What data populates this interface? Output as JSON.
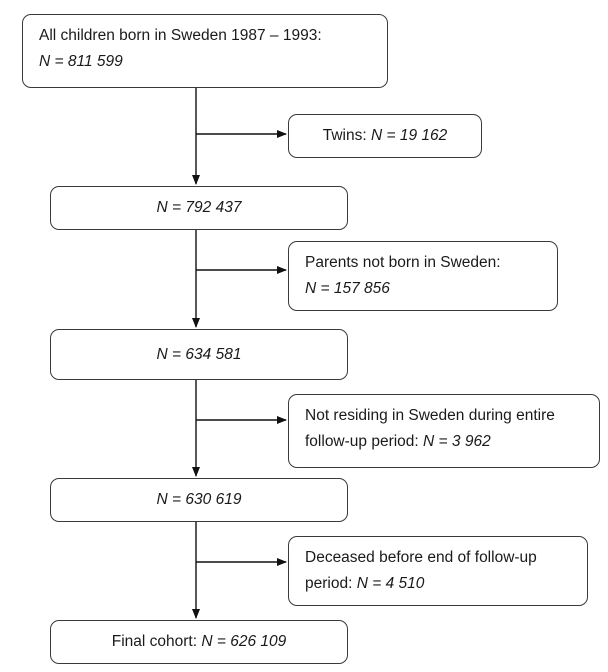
{
  "boxes": {
    "all_children": {
      "line1": "All children born in Sweden 1987 – 1993:",
      "n_label": "N = ",
      "n_value": "811 599"
    },
    "twins": {
      "label": "Twins: ",
      "n_label": "N = ",
      "n_value": "19 162"
    },
    "step1": {
      "n_label": "N = ",
      "n_value": "792 437"
    },
    "parents_not_born": {
      "line1": "Parents not born in Sweden:",
      "n_label": "N = ",
      "n_value": "157 856"
    },
    "step2": {
      "n_label": "N = ",
      "n_value": "634 581"
    },
    "not_residing": {
      "line1": "Not residing in Sweden during entire",
      "line2": "follow-up period: ",
      "n_label": "N = ",
      "n_value": "3 962"
    },
    "step3": {
      "n_label": "N = ",
      "n_value": "630 619"
    },
    "deceased": {
      "line1": "Deceased before end of follow-up",
      "line2": "period: ",
      "n_label": "N = ",
      "n_value": "4 510"
    },
    "final": {
      "label": "Final cohort: ",
      "n_label": "N = ",
      "n_value": "626 109"
    }
  }
}
